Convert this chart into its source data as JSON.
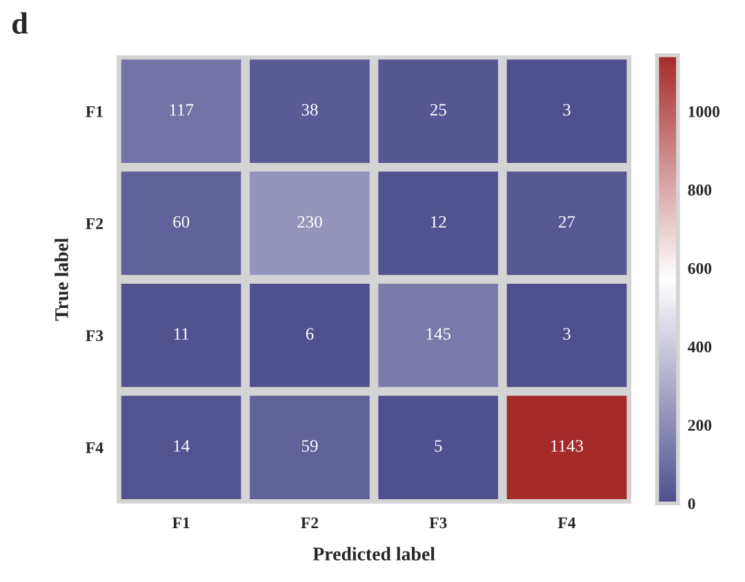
{
  "chart_data": {
    "type": "heatmap",
    "title": "d",
    "xlabel": "Predicted label",
    "ylabel": "True label",
    "categories": [
      "F1",
      "F2",
      "F3",
      "F4"
    ],
    "y_categories": [
      "F1",
      "F2",
      "F3",
      "F4"
    ],
    "cells": [
      [
        117,
        38,
        25,
        3
      ],
      [
        60,
        230,
        12,
        27
      ],
      [
        11,
        6,
        145,
        3
      ],
      [
        14,
        59,
        5,
        1143
      ]
    ],
    "data_labels": true,
    "clim": [
      0,
      1143
    ],
    "cticks": [
      0,
      200,
      400,
      600,
      800,
      1000
    ]
  }
}
